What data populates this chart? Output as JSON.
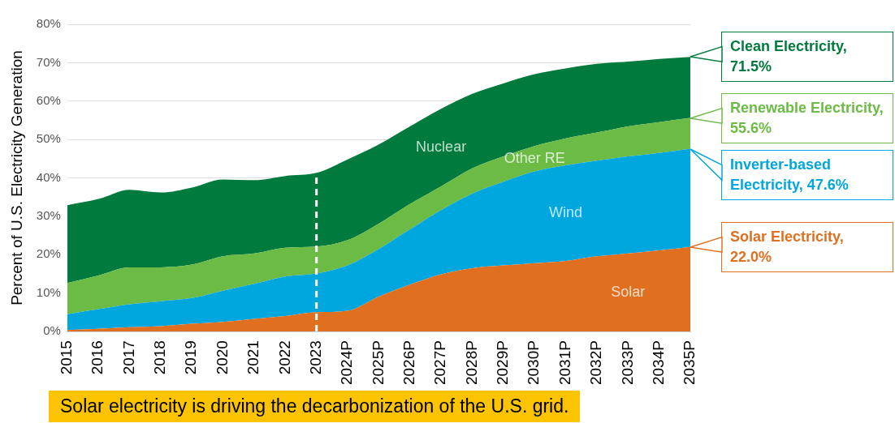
{
  "chart_data": {
    "type": "area",
    "stacked": true,
    "ylabel": "Percent of U.S. Electricity Generation",
    "categories": [
      "2015",
      "2016",
      "2017",
      "2018",
      "2019",
      "2020",
      "2021",
      "2022",
      "2023",
      "2024P",
      "2025P",
      "2026P",
      "2027P",
      "2028P",
      "2029P",
      "2030P",
      "2031P",
      "2032P",
      "2033P",
      "2034P",
      "2035P"
    ],
    "series": [
      {
        "name": "Solar",
        "color": "#e07020",
        "values": [
          0.4,
          0.7,
          1.1,
          1.4,
          2.0,
          2.5,
          3.3,
          4.0,
          5.0,
          5.4,
          9.1,
          12.2,
          14.9,
          16.5,
          17.2,
          17.8,
          18.4,
          19.6,
          20.3,
          21.1,
          22.0
        ]
      },
      {
        "name": "Wind",
        "color": "#00a6de",
        "values": [
          4.1,
          5.1,
          6.0,
          6.5,
          6.7,
          8.1,
          9.1,
          10.3,
          10.1,
          11.8,
          12.4,
          14.4,
          16.7,
          19.4,
          21.8,
          23.9,
          24.9,
          24.9,
          25.3,
          25.4,
          25.6
        ]
      },
      {
        "name": "Other RE",
        "color": "#6cbb45",
        "values": [
          8.1,
          8.8,
          9.6,
          8.8,
          8.7,
          9.0,
          7.9,
          7.5,
          7.0,
          6.6,
          6.6,
          6.6,
          6.2,
          6.6,
          6.6,
          6.6,
          7.0,
          7.3,
          7.8,
          8.0,
          8.0
        ]
      },
      {
        "name": "Nuclear",
        "color": "#007a3d",
        "values": [
          20.3,
          19.9,
          20.2,
          19.5,
          20.1,
          20.0,
          19.1,
          18.7,
          19.2,
          21.0,
          20.6,
          20.2,
          20.2,
          19.4,
          19.0,
          18.7,
          18.2,
          17.9,
          16.9,
          16.5,
          15.9
        ]
      }
    ],
    "ylim": [
      0,
      80
    ],
    "yticks": [
      {
        "value": 0,
        "label": "0%"
      },
      {
        "value": 10,
        "label": "10%"
      },
      {
        "value": 20,
        "label": "20%"
      },
      {
        "value": 30,
        "label": "30%"
      },
      {
        "value": 40,
        "label": "40%"
      },
      {
        "value": 50,
        "label": "50%"
      },
      {
        "value": 60,
        "label": "60%"
      },
      {
        "value": 70,
        "label": "70%"
      },
      {
        "value": 80,
        "label": "80%"
      }
    ],
    "grid": "y",
    "legend": false,
    "ref_lines": [
      {
        "axis": "x",
        "value": "2023",
        "color": "#ffffff",
        "line_style": "dashed"
      }
    ],
    "annotations": [
      {
        "text": "Clean Electricity, 71.5%",
        "x": "2035P",
        "y": 71.5
      },
      {
        "text": "Renewable Electricity, 55.6%",
        "x": "2035P",
        "y": 55.6
      },
      {
        "text": "Inverter-based Electricity, 47.6%",
        "x": "2035P",
        "y": 47.6
      },
      {
        "text": "Solar Electricity, 22.0%",
        "x": "2035P",
        "y": 22.0
      },
      "Solar electricity is driving the decarbonization of the U.S. grid."
    ]
  }
}
